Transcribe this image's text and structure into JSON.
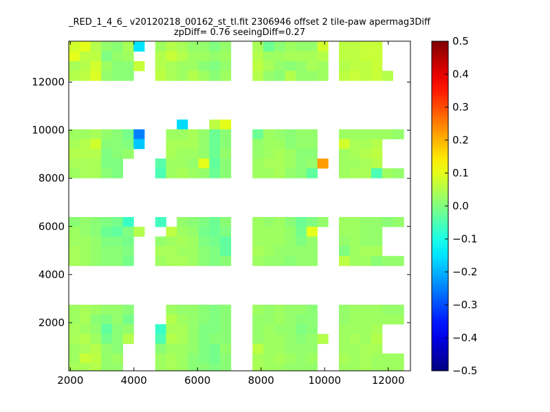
{
  "chart_data": {
    "type": "heatmap",
    "title": "_RED_1_4_6_ v20120218_00162_st_tl.fit 2306946 offset 2 tile-paw apermag3Diff",
    "subtitle": "zpDiff= 0.76 seeingDiff=0.27",
    "xlabel": "",
    "ylabel": "",
    "xlim": [
      1950,
      12700
    ],
    "ylim": [
      0,
      13700
    ],
    "xticks": [
      2000,
      4000,
      6000,
      8000,
      10000,
      12000
    ],
    "yticks": [
      2000,
      4000,
      6000,
      8000,
      10000,
      12000
    ],
    "colorbar": {
      "range": [
        -0.5,
        0.5
      ],
      "ticks": [
        "0.5",
        "0.4",
        "0.3",
        "0.2",
        "0.1",
        "0.0",
        "−0.1",
        "−0.2",
        "−0.3",
        "−0.4",
        "−0.5"
      ],
      "colormap": "jet"
    },
    "grid": false,
    "cell": {
      "w": 340,
      "h": 405
    },
    "col_centers": [
      2120,
      2460,
      2800,
      3140,
      3480,
      3820,
      4160,
      4840,
      5180,
      5520,
      5860,
      6200,
      6540,
      6880,
      7900,
      8240,
      8580,
      8920,
      9260,
      9600,
      9940,
      10620,
      10960,
      11300,
      11640,
      11980,
      12320,
      12560
    ],
    "row_centers": [
      13480,
      13075,
      12670,
      12265,
      11860,
      11455,
      11050,
      10645,
      10240,
      9835,
      9430,
      9025,
      8620,
      8215,
      7810,
      7405,
      7000,
      6595,
      6190,
      5785,
      5380,
      4975,
      4570,
      4165,
      3760,
      3355,
      2950,
      2545,
      2140,
      1735,
      1330,
      925,
      520,
      115
    ],
    "values": [
      [
        0.08,
        0.1,
        0.05,
        0.02,
        0.01,
        0.04,
        -0.15,
        0.03,
        0.05,
        0.04,
        0.02,
        0.02,
        0.0,
        0.02,
        0.04,
        -0.02,
        0.01,
        0.03,
        0.02,
        0.02,
        0.08,
        0.06,
        0.06,
        0.07,
        0.07,
        null,
        null,
        null
      ],
      [
        0.1,
        0.06,
        0.06,
        0.0,
        0.02,
        0.03,
        null,
        0.05,
        0.07,
        0.05,
        0.03,
        0.03,
        0.02,
        0.03,
        0.05,
        0.03,
        0.03,
        0.04,
        0.04,
        0.04,
        0.05,
        0.06,
        0.06,
        0.07,
        0.07,
        null,
        null,
        null
      ],
      [
        0.04,
        0.05,
        0.08,
        0.03,
        0.01,
        0.01,
        0.07,
        0.05,
        0.04,
        0.03,
        0.03,
        0.01,
        0.0,
        0.02,
        0.06,
        0.04,
        0.02,
        0.01,
        0.02,
        0.04,
        0.03,
        0.05,
        0.06,
        0.06,
        0.07,
        null,
        null,
        null
      ],
      [
        0.05,
        0.06,
        0.09,
        0.02,
        0.01,
        0.01,
        null,
        0.06,
        0.04,
        0.03,
        0.05,
        0.03,
        0.01,
        0.03,
        0.05,
        0.02,
        0.01,
        0.05,
        0.02,
        0.02,
        0.03,
        0.06,
        0.07,
        0.06,
        0.07,
        0.05,
        null,
        null
      ],
      [
        null,
        null,
        null,
        null,
        null,
        null,
        null,
        null,
        null,
        null,
        null,
        null,
        null,
        null,
        null,
        null,
        null,
        null,
        null,
        null,
        null,
        null,
        null,
        null,
        null,
        null,
        null,
        null
      ],
      [
        null,
        null,
        null,
        null,
        null,
        null,
        null,
        null,
        null,
        null,
        null,
        null,
        null,
        null,
        null,
        null,
        null,
        null,
        null,
        null,
        null,
        null,
        null,
        null,
        null,
        null,
        null,
        null
      ],
      [
        null,
        null,
        null,
        null,
        null,
        null,
        null,
        null,
        null,
        null,
        null,
        null,
        null,
        null,
        null,
        null,
        null,
        null,
        null,
        null,
        null,
        null,
        null,
        null,
        null,
        null,
        null,
        null
      ],
      [
        null,
        null,
        null,
        null,
        null,
        null,
        null,
        null,
        null,
        null,
        null,
        null,
        null,
        null,
        null,
        null,
        null,
        null,
        null,
        null,
        null,
        null,
        null,
        null,
        null,
        null,
        null,
        null
      ],
      [
        null,
        null,
        null,
        null,
        null,
        null,
        null,
        null,
        null,
        -0.16,
        null,
        null,
        0.06,
        0.1,
        null,
        null,
        null,
        null,
        null,
        null,
        null,
        null,
        null,
        null,
        null,
        null,
        null,
        null
      ],
      [
        0.03,
        0.03,
        0.04,
        0.02,
        0.01,
        -0.01,
        -0.25,
        null,
        0.03,
        0.03,
        0.04,
        0.02,
        -0.02,
        0.01,
        -0.02,
        0.03,
        0.02,
        0.01,
        0.02,
        0.02,
        null,
        0.03,
        0.03,
        0.03,
        0.03,
        0.03,
        0.02,
        null
      ],
      [
        0.04,
        0.05,
        0.08,
        0.01,
        0.01,
        0.0,
        -0.18,
        null,
        0.04,
        0.04,
        0.04,
        0.02,
        -0.02,
        0.01,
        0.02,
        0.03,
        0.03,
        0.01,
        0.02,
        0.02,
        null,
        0.08,
        0.04,
        0.04,
        0.05,
        null,
        null,
        null
      ],
      [
        0.05,
        0.05,
        0.05,
        0.0,
        0.01,
        0.02,
        null,
        null,
        0.04,
        0.03,
        0.03,
        0.02,
        -0.02,
        0.02,
        0.02,
        0.03,
        0.04,
        0.03,
        0.01,
        0.01,
        null,
        0.03,
        0.04,
        0.05,
        0.06,
        null,
        null,
        null
      ],
      [
        0.04,
        0.04,
        0.04,
        0.0,
        0.0,
        null,
        null,
        -0.04,
        0.03,
        0.03,
        0.02,
        0.1,
        -0.03,
        0.01,
        0.03,
        0.04,
        0.04,
        0.03,
        0.01,
        0.02,
        0.22,
        0.03,
        0.03,
        0.04,
        0.05,
        null,
        null,
        null
      ],
      [
        0.03,
        0.04,
        0.04,
        0.01,
        0.0,
        null,
        null,
        -0.05,
        0.03,
        0.04,
        0.03,
        0.02,
        -0.02,
        0.01,
        0.03,
        0.03,
        0.04,
        0.02,
        0.01,
        -0.03,
        null,
        0.03,
        0.04,
        0.04,
        -0.05,
        0.03,
        0.02,
        null
      ],
      [
        null,
        null,
        null,
        null,
        null,
        null,
        null,
        null,
        null,
        null,
        null,
        null,
        null,
        null,
        null,
        null,
        null,
        null,
        null,
        null,
        null,
        null,
        null,
        null,
        null,
        null,
        null,
        null
      ],
      [
        null,
        null,
        null,
        null,
        null,
        null,
        null,
        null,
        null,
        null,
        null,
        null,
        null,
        null,
        null,
        null,
        null,
        null,
        null,
        null,
        null,
        null,
        null,
        null,
        null,
        null,
        null,
        null
      ],
      [
        null,
        null,
        null,
        null,
        null,
        null,
        null,
        null,
        null,
        null,
        null,
        null,
        null,
        null,
        null,
        null,
        null,
        null,
        null,
        null,
        null,
        null,
        null,
        null,
        null,
        null,
        null,
        null
      ],
      [
        null,
        null,
        null,
        null,
        null,
        null,
        null,
        null,
        null,
        null,
        null,
        null,
        null,
        null,
        null,
        null,
        null,
        null,
        null,
        null,
        null,
        null,
        null,
        null,
        null,
        null,
        null,
        null
      ],
      [
        0.01,
        0.02,
        0.01,
        0.0,
        -0.01,
        -0.07,
        null,
        -0.06,
        null,
        0.02,
        0.01,
        0.0,
        -0.02,
        0.01,
        0.03,
        0.02,
        0.03,
        0.01,
        -0.02,
        0.0,
        0.02,
        0.03,
        0.03,
        0.02,
        0.02,
        0.01,
        0.02,
        null
      ],
      [
        0.03,
        0.02,
        0.01,
        -0.02,
        -0.03,
        0.0,
        0.05,
        null,
        0.06,
        0.03,
        0.02,
        -0.01,
        -0.02,
        0.0,
        0.03,
        0.03,
        0.03,
        0.02,
        -0.01,
        0.1,
        null,
        0.03,
        0.03,
        0.02,
        0.02,
        null,
        null,
        null
      ],
      [
        0.03,
        0.03,
        0.02,
        0.0,
        0.0,
        -0.01,
        null,
        0.02,
        0.03,
        0.04,
        0.03,
        0.0,
        -0.01,
        -0.03,
        0.03,
        0.03,
        0.03,
        0.02,
        0.0,
        0.02,
        null,
        0.02,
        0.03,
        0.02,
        0.02,
        null,
        null,
        null
      ],
      [
        0.04,
        0.03,
        0.02,
        0.01,
        0.01,
        0.0,
        null,
        0.04,
        0.04,
        0.03,
        0.03,
        0.01,
        0.0,
        -0.03,
        0.04,
        0.03,
        0.02,
        0.02,
        0.02,
        0.02,
        null,
        0.0,
        0.03,
        0.04,
        0.04,
        null,
        null,
        null
      ],
      [
        0.04,
        0.03,
        0.02,
        0.01,
        0.01,
        -0.01,
        null,
        0.03,
        0.04,
        0.04,
        0.03,
        0.01,
        0.0,
        0.01,
        0.03,
        0.02,
        0.02,
        0.01,
        0.02,
        0.02,
        null,
        0.06,
        0.03,
        0.03,
        0.01,
        0.02,
        0.02,
        null
      ],
      [
        null,
        null,
        null,
        null,
        null,
        null,
        null,
        null,
        null,
        null,
        null,
        null,
        null,
        null,
        null,
        null,
        null,
        null,
        null,
        null,
        null,
        null,
        null,
        null,
        null,
        null,
        null,
        null
      ],
      [
        null,
        null,
        null,
        null,
        null,
        null,
        null,
        null,
        null,
        null,
        null,
        null,
        null,
        null,
        null,
        null,
        null,
        null,
        null,
        null,
        null,
        null,
        null,
        null,
        null,
        null,
        null,
        null
      ],
      [
        null,
        null,
        null,
        null,
        null,
        null,
        null,
        null,
        null,
        null,
        null,
        null,
        null,
        null,
        null,
        null,
        null,
        null,
        null,
        null,
        null,
        null,
        null,
        null,
        null,
        null,
        null,
        null
      ],
      [
        null,
        null,
        null,
        null,
        null,
        null,
        null,
        null,
        null,
        null,
        null,
        null,
        null,
        null,
        null,
        null,
        null,
        null,
        null,
        null,
        null,
        null,
        null,
        null,
        null,
        null,
        null,
        null
      ],
      [
        0.03,
        0.04,
        0.03,
        0.02,
        0.02,
        0.01,
        null,
        null,
        0.03,
        0.02,
        0.02,
        0.01,
        0.0,
        0.01,
        0.03,
        0.02,
        0.03,
        0.02,
        0.02,
        0.01,
        null,
        0.02,
        0.03,
        0.03,
        0.03,
        0.02,
        0.02,
        null
      ],
      [
        0.03,
        0.04,
        0.01,
        0.0,
        0.02,
        -0.01,
        null,
        null,
        0.05,
        0.03,
        0.02,
        0.01,
        0.0,
        0.01,
        0.02,
        0.02,
        0.03,
        0.02,
        0.01,
        0.01,
        null,
        0.02,
        0.03,
        0.03,
        0.03,
        0.03,
        0.03,
        null
      ],
      [
        0.04,
        0.03,
        0.02,
        -0.03,
        0.01,
        0.02,
        null,
        -0.07,
        0.04,
        0.04,
        0.02,
        0.0,
        0.0,
        0.01,
        0.02,
        0.03,
        0.02,
        0.02,
        0.0,
        0.01,
        null,
        0.03,
        0.03,
        0.03,
        0.04,
        null,
        null,
        null
      ],
      [
        0.04,
        0.05,
        0.03,
        -0.01,
        0.01,
        0.05,
        null,
        -0.05,
        0.05,
        0.04,
        0.02,
        0.0,
        0.01,
        0.01,
        0.02,
        0.03,
        0.03,
        0.02,
        0.01,
        0.02,
        0.05,
        0.03,
        0.04,
        0.03,
        0.05,
        null,
        null,
        null
      ],
      [
        0.03,
        0.04,
        0.05,
        0.02,
        0.01,
        null,
        null,
        0.01,
        0.03,
        0.03,
        0.02,
        0.0,
        -0.01,
        0.02,
        0.06,
        0.03,
        0.03,
        0.02,
        0.02,
        0.02,
        null,
        0.03,
        0.03,
        0.04,
        0.04,
        null,
        null,
        null
      ],
      [
        0.03,
        0.07,
        0.06,
        0.02,
        0.03,
        null,
        null,
        0.03,
        0.04,
        0.03,
        0.01,
        0.0,
        -0.01,
        0.01,
        0.04,
        0.03,
        0.04,
        0.03,
        0.02,
        0.03,
        null,
        0.04,
        0.03,
        0.04,
        0.03,
        0.03,
        0.03,
        null
      ],
      [
        0.04,
        0.04,
        0.05,
        0.02,
        0.02,
        null,
        null,
        0.03,
        0.04,
        0.03,
        0.01,
        0.01,
        0.0,
        0.01,
        0.04,
        0.03,
        0.03,
        0.02,
        0.02,
        0.02,
        null,
        0.03,
        0.03,
        0.04,
        0.03,
        0.03,
        0.03,
        null
      ]
    ]
  }
}
